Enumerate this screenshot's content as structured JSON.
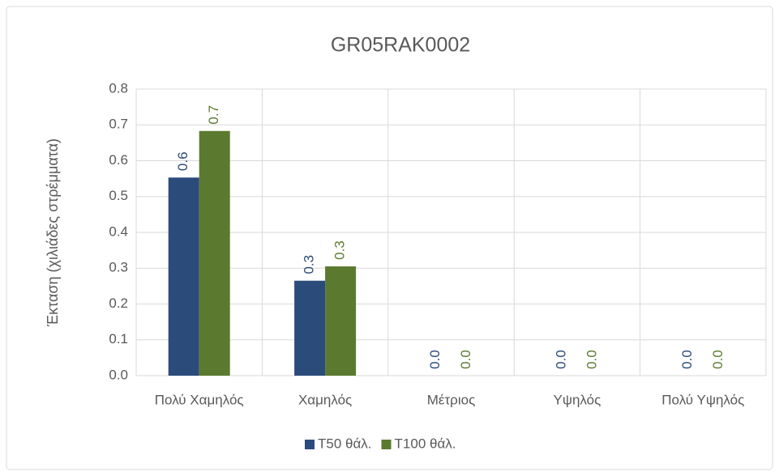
{
  "chart_data": {
    "type": "bar",
    "title": "GR05RAK0002",
    "y_label": "Έκταση (χιλιάδες στρέμματα)",
    "categories": [
      "Πολύ Χαμηλός",
      "Χαμηλός",
      "Μέτριος",
      "Υψηλός",
      "Πολύ Υψηλός"
    ],
    "series": [
      {
        "name": "T50 θάλ.",
        "color": "#2b4b7b",
        "values": [
          0.553,
          0.265,
          0,
          0,
          0
        ],
        "value_labels": [
          "0.6",
          "0.3",
          "0.0",
          "0.0",
          "0.0"
        ]
      },
      {
        "name": "T100 θάλ.",
        "color": "#5b7a2f",
        "values": [
          0.683,
          0.305,
          0,
          0,
          0
        ],
        "value_labels": [
          "0.7",
          "0.3",
          "0.0",
          "0.0",
          "0.0"
        ]
      }
    ],
    "ylim": [
      0,
      0.8
    ],
    "yticks": [
      {
        "value": 0,
        "label": "0.0"
      },
      0.1,
      0.2,
      0.3,
      0.4,
      0.5,
      0.6,
      0.7,
      0.8
    ],
    "grid": true,
    "legend": "bottom"
  }
}
